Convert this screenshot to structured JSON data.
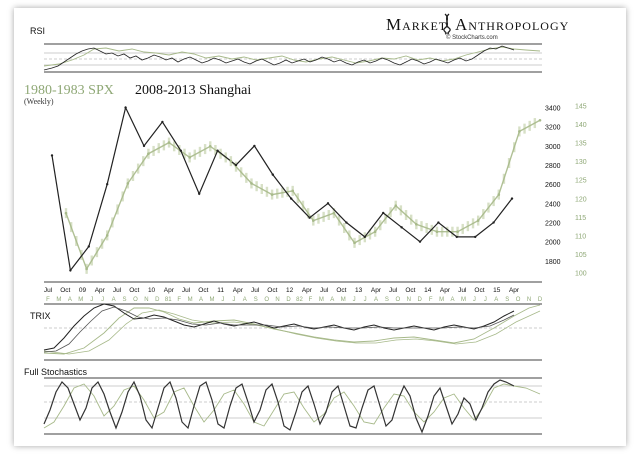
{
  "brand": {
    "word1": "Market",
    "word2": "Anthropology",
    "source": "© StockCharts.com",
    "logo_icon": "dna-helix-icon"
  },
  "colors": {
    "shanghai": "#222222",
    "spx": "#a7b98a",
    "spx_label": "#8fa876",
    "grid": "#cfcfcf",
    "axis": "#000000",
    "ref_line": "#555555"
  },
  "chart_data": [
    {
      "type": "line",
      "panel": "RSI",
      "title": "RSI",
      "series": []
    },
    {
      "type": "line",
      "panel": "main",
      "legend": [
        "1980-1983 SPX",
        "2008-2013 Shanghai"
      ],
      "subtitle": "(Weekly)",
      "ylim_left": [
        1600,
        3500
      ],
      "ylim_right": [
        98,
        147
      ],
      "right_ticks": [
        3400,
        3200,
        3000,
        2800,
        2600,
        2400,
        2200,
        2000,
        1800
      ],
      "left_ticks": [
        145,
        140,
        135,
        130,
        125,
        120,
        115,
        110,
        105,
        100
      ],
      "x_top_ticks": [
        "Jul",
        "Oct",
        "09",
        "Apr",
        "Jul",
        "Oct",
        "10",
        "Apr",
        "Jul",
        "Oct",
        "11",
        "Apr",
        "Jul",
        "Oct",
        "12",
        "Apr",
        "Jul",
        "Oct",
        "13",
        "Apr",
        "Jul",
        "Oct",
        "14",
        "Apr",
        "Jul",
        "Oct",
        "15",
        "Apr"
      ],
      "x_bottom_ticks": [
        "F",
        "M",
        "A",
        "M",
        "J",
        "J",
        "A",
        "S",
        "O",
        "N",
        "D",
        "81",
        "F",
        "M",
        "A",
        "M",
        "J",
        "J",
        "A",
        "S",
        "O",
        "N",
        "D",
        "82",
        "F",
        "M",
        "A",
        "M",
        "J",
        "J",
        "A",
        "S",
        "O",
        "N",
        "D",
        "F",
        "M",
        "A",
        "M",
        "J",
        "J",
        "A",
        "S",
        "O",
        "N",
        "D"
      ],
      "series": [
        {
          "name": "2008-2013 Shanghai",
          "x_label": [
            "Jul 08",
            "Oct 08",
            "Jan 09",
            "Apr 09",
            "Jul 09",
            "Oct 09",
            "Jan 10",
            "Apr 10",
            "Jul 10",
            "Oct 10",
            "Jan 11",
            "Apr 11",
            "Jul 11",
            "Oct 11",
            "Jan 12",
            "Apr 12",
            "Jul 12",
            "Oct 12",
            "Jan 13",
            "Apr 13",
            "Jul 13",
            "Oct 13",
            "Jan 14",
            "Apr 14",
            "Jul 14",
            "Oct 14"
          ],
          "values": [
            2900,
            1700,
            1950,
            2600,
            3400,
            3000,
            3250,
            2950,
            2500,
            2950,
            2800,
            3000,
            2700,
            2450,
            2250,
            2400,
            2200,
            2050,
            2300,
            2150,
            2000,
            2200,
            2050,
            2050,
            2200,
            2450
          ]
        },
        {
          "name": "1980-1983 SPX",
          "x_label": [
            "Feb 80",
            "Apr 80",
            "Jun 80",
            "Aug 80",
            "Oct 80",
            "Dec 80",
            "Feb 81",
            "Apr 81",
            "Jun 81",
            "Aug 81",
            "Oct 81",
            "Dec 81",
            "Feb 82",
            "Apr 82",
            "Jun 82",
            "Aug 82",
            "Oct 82",
            "Dec 82",
            "Feb 83",
            "Apr 83",
            "Jun 83",
            "Aug 83",
            "Oct 83",
            "Dec 83"
          ],
          "values": [
            116,
            101,
            110,
            124,
            132,
            135,
            131,
            134,
            130,
            124,
            121,
            122,
            114,
            116,
            108,
            111,
            118,
            113,
            111,
            111,
            114,
            121,
            138,
            141
          ]
        }
      ]
    },
    {
      "type": "line",
      "panel": "TRIX",
      "title": "TRIX",
      "series": []
    },
    {
      "type": "line",
      "panel": "Full Stochastics",
      "title": "Full Stochastics",
      "series": []
    }
  ]
}
